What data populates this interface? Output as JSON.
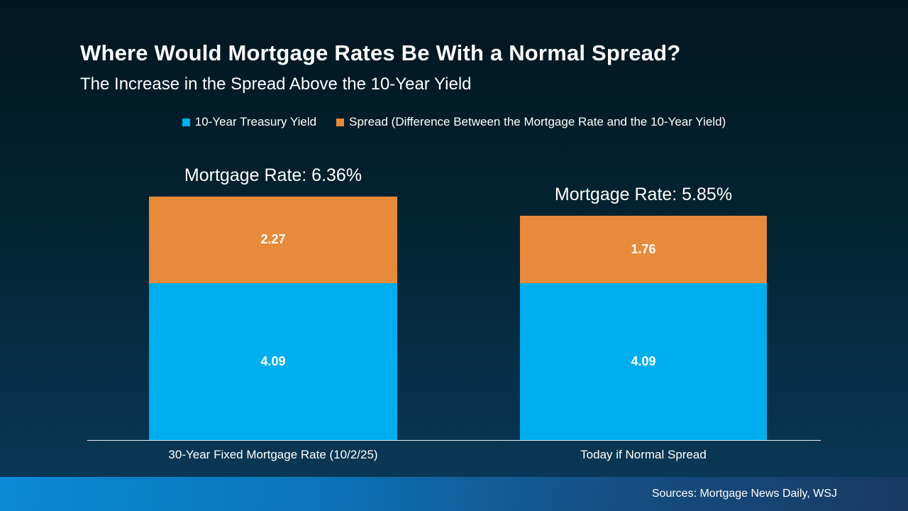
{
  "header": {
    "title": "Where Would Mortgage Rates Be With a Normal Spread?",
    "subtitle": "The Increase in the Spread Above the 10-Year Yield"
  },
  "legend": {
    "items": [
      {
        "label": "10-Year Treasury Yield",
        "color": "#00adee"
      },
      {
        "label": "Spread (Difference Between the Mortgage Rate and the 10-Year Yield)",
        "color": "#e78a3c"
      }
    ]
  },
  "chart_data": {
    "type": "bar",
    "stacked": true,
    "title": "Where Would Mortgage Rates Be With a Normal Spread?",
    "subtitle": "The Increase in the Spread Above the 10-Year Yield",
    "categories": [
      "30-Year Fixed Mortgage Rate (10/2/25)",
      "Today if Normal Spread"
    ],
    "series": [
      {
        "name": "10-Year Treasury Yield",
        "color": "#00adee",
        "values": [
          4.09,
          4.09
        ]
      },
      {
        "name": "Spread (Difference Between the Mortgage Rate and the 10-Year Yield)",
        "color": "#e78a3c",
        "values": [
          2.27,
          1.76
        ]
      }
    ],
    "bar_total_labels": [
      "Mortgage Rate: 6.36%",
      "Mortgage Rate: 5.85%"
    ],
    "totals": [
      6.36,
      5.85
    ],
    "ylim": [
      0,
      6.5
    ],
    "grid": false,
    "legend_position": "top"
  },
  "footer": {
    "sources": "Sources: Mortgage News Daily, WSJ"
  }
}
